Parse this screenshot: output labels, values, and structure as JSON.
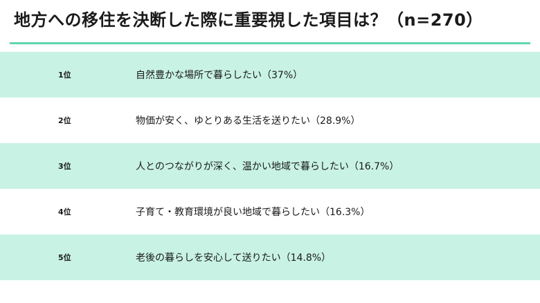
{
  "title": "地方への移住を決断した際に重要視した項目は？（n=270）",
  "colors": {
    "accent_rule": "#5fd6b0",
    "row_shade": "#c8f2e4",
    "row_plain": "#ffffff"
  },
  "ranking": [
    {
      "rank": "1位",
      "text": "自然豊かな場所で暮らしたい（37%）"
    },
    {
      "rank": "2位",
      "text": "物価が安く、ゆとりある生活を送りたい（28.9%）"
    },
    {
      "rank": "3位",
      "text": "人とのつながりが深く、温かい地域で暮らしたい（16.7%）"
    },
    {
      "rank": "4位",
      "text": "子育て・教育環境が良い地域で暮らしたい（16.3%）"
    },
    {
      "rank": "5位",
      "text": "老後の暮らしを安心して送りたい（14.8%）"
    }
  ]
}
